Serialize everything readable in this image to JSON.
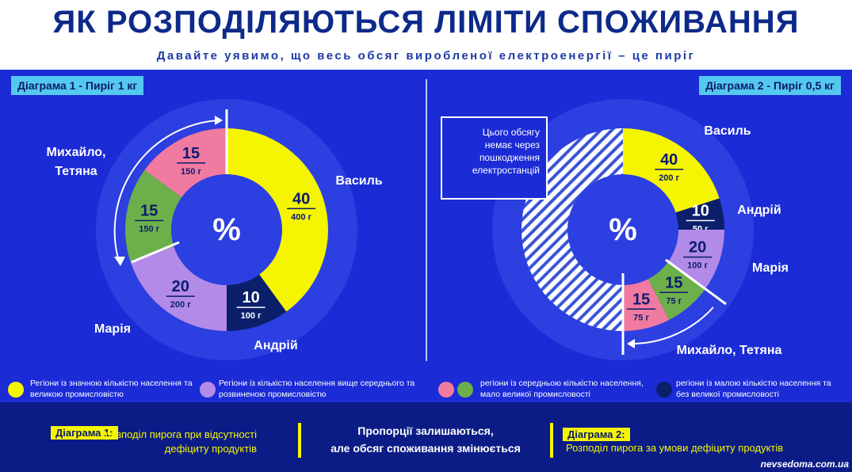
{
  "header": {
    "title": "ЯК РОЗПОДІЛЯЮТЬСЯ ЛІМІТИ СПОЖИВАННЯ",
    "subtitle": "Давайте уявимо, що весь обсяг виробленої електроенергії – це пиріг"
  },
  "colors": {
    "yellow": "#f5f500",
    "purple": "#b28ae8",
    "navy": "#0b1f6b",
    "green": "#6db04b",
    "pink": "#f07aa0",
    "hatch_white": "#ffffff",
    "hatch_blue": "#3a55d8"
  },
  "center_symbol": "%",
  "chart_data": [
    {
      "type": "pie",
      "label": "Діаграма 1 - Пиріг 1 кг",
      "unit": "%",
      "slices": [
        {
          "person": "Василь",
          "value": 40,
          "grams": "400 г",
          "color": "yellow"
        },
        {
          "person": "Андрій",
          "value": 10,
          "grams": "100 г",
          "color": "navy"
        },
        {
          "person": "Марія",
          "value": 20,
          "grams": "200 г",
          "color": "purple"
        },
        {
          "person": "Михайло, Тетяна",
          "value": 15,
          "grams": "150 г",
          "color": "green"
        },
        {
          "person": "Михайло, Тетяна",
          "value": 15,
          "grams": "150 г",
          "color": "pink"
        }
      ],
      "names": {
        "vasyl": "Василь",
        "andriy": "Андрій",
        "mariya": "Марія",
        "mykhailo": "Михайло,",
        "tetiana": "Тетяна"
      }
    },
    {
      "type": "pie",
      "label": "Діаграма 2 - Пиріг 0,5 кг",
      "unit": "%",
      "slices": [
        {
          "person": "Василь",
          "value": 40,
          "grams": "200 г",
          "color": "yellow"
        },
        {
          "person": "Андрій",
          "value": 10,
          "grams": "50 г",
          "color": "navy"
        },
        {
          "person": "Марія",
          "value": 20,
          "grams": "100 г",
          "color": "purple"
        },
        {
          "person": "Михайло, Тетяна",
          "value": 15,
          "grams": "75 г",
          "color": "green"
        },
        {
          "person": "Михайло, Тетяна",
          "value": 15,
          "grams": "75 г",
          "color": "pink"
        }
      ],
      "missing_note": [
        "Цього обсягу",
        "немає через",
        "пошкодження",
        "електростанцій"
      ],
      "names": {
        "vasyl": "Василь",
        "andriy": "Андрій",
        "mariya": "Марія",
        "mykhailo_tetiana": "Михайло, Тетяна"
      }
    }
  ],
  "legend": [
    {
      "text": "Регіони із значною кількістю населення та великою промисловістю"
    },
    {
      "text": "Регіони із кількістю населення вище середнього та розвиненою промисловістю"
    },
    {
      "text": "регіони із середньою кількістю населення, мало великої промисловості"
    },
    {
      "text": "регіони із малою кількістю населення та без великої промисловості"
    }
  ],
  "footer": {
    "left_tag": "Діаграма 1:",
    "left_text": "розподіл пирога при відсутності дефіциту продуктів",
    "center_line1": "Пропорції залишаються,",
    "center_line2": "але обсяг споживання змінюється",
    "right_tag": "Діаграма 2:",
    "right_text": "Розподіл пирога за умови дефіциту продуктів",
    "watermark": "nevsedoma.com.ua"
  }
}
